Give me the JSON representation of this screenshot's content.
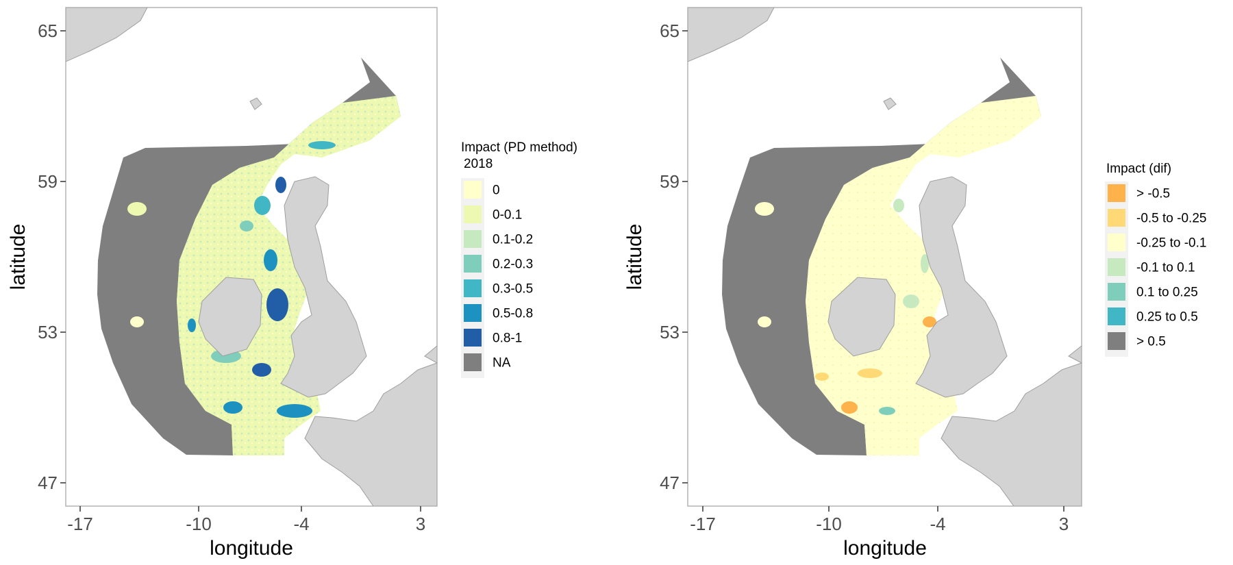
{
  "colors": {
    "land": "#d3d3d3",
    "land_border": "#9e9e9e",
    "na_grey": "#7f7f7f",
    "panel_border": "#b3b3b3",
    "bins_impact": [
      "#ffffcc",
      "#edf8b1",
      "#c7e9c0",
      "#7fcdbb",
      "#41b6c4",
      "#1d91c0",
      "#225ea8"
    ],
    "bins_dif": [
      "#feb24c",
      "#fed976",
      "#ffffcc",
      "#c7e9c0",
      "#7fcdbb",
      "#41b6c4",
      "#7f7f7f"
    ]
  },
  "maps": [
    {
      "xlabel": "longitude",
      "ylabel": "latitude",
      "x_ticks": [
        "-17",
        "-10",
        "-4",
        "3"
      ],
      "y_ticks": [
        "65",
        "59",
        "53",
        "47"
      ],
      "legend": {
        "title_line1": "Impact (PD method)",
        "title_line2": "2018",
        "items": [
          "0",
          "0-0.1",
          "0.1-0.2",
          "0.2-0.3",
          "0.3-0.5",
          "0.5-0.8",
          "0.8-1",
          "NA"
        ],
        "colors": [
          "#ffffcc",
          "#edf8b1",
          "#c7e9c0",
          "#7fcdbb",
          "#41b6c4",
          "#1d91c0",
          "#225ea8",
          "#7f7f7f"
        ]
      }
    },
    {
      "xlabel": "longitude",
      "ylabel": "latitude",
      "x_ticks": [
        "-17",
        "-10",
        "-4",
        "3"
      ],
      "y_ticks": [
        "65",
        "59",
        "53",
        "47"
      ],
      "legend": {
        "title_line1": "Impact (dif)",
        "title_line2": "",
        "items": [
          "> -0.5",
          "-0.5 to -0.25",
          "-0.25 to -0.1",
          "-0.1 to 0.1",
          "0.1 to 0.25",
          "0.25 to 0.5",
          "> 0.5"
        ],
        "colors": [
          "#feb24c",
          "#fed976",
          "#ffffcc",
          "#c7e9c0",
          "#7fcdbb",
          "#41b6c4",
          "#7f7f7f"
        ]
      }
    }
  ]
}
